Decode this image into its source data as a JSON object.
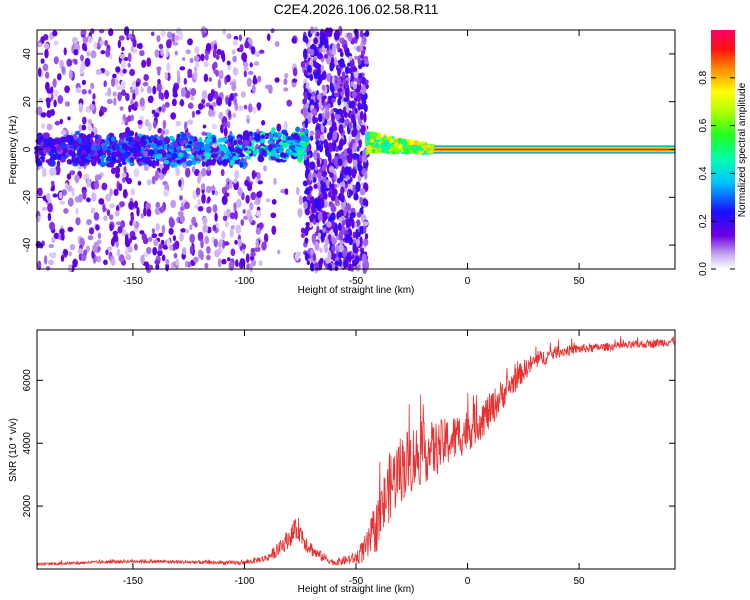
{
  "title": "C2E4.2026.106.02.58.R11",
  "colors": {
    "snr_line": "#e83030",
    "spectrogram_low": "#5a00d0",
    "spectrogram_high": "#ff0066",
    "axis": "#000000"
  },
  "chart_data": [
    {
      "type": "heatmap",
      "title": "C2E4.2026.106.02.58.R11",
      "xlabel": "Height of straight line (km)",
      "ylabel": "Frequency (Hz)",
      "xlim": [
        -193,
        93
      ],
      "ylim": [
        -50,
        50
      ],
      "xticks": [
        -150,
        -100,
        -50,
        0,
        50
      ],
      "yticks": [
        -40,
        -20,
        0,
        20,
        40
      ],
      "colorbar": {
        "label": "Normalized spectral amplitude",
        "range": [
          0,
          1
        ],
        "ticks": [
          "0.0",
          "0.2",
          "0.4",
          "0.6",
          "0.8"
        ],
        "tick_values": [
          0.0,
          0.2,
          0.4,
          0.6,
          0.8
        ],
        "colormap": "rainbow (violet to red/magenta)"
      },
      "features": [
        {
          "name": "diffuse noise",
          "x_range": [
            -193,
            -45
          ],
          "freq_range": [
            -50,
            50
          ],
          "amplitude": 0.05
        },
        {
          "name": "central band",
          "x_range": [
            -193,
            -72
          ],
          "freq_center": 0,
          "freq_halfwidth": 6,
          "amplitude_range": [
            0.1,
            0.4
          ]
        },
        {
          "name": "noise column",
          "x_range": [
            -73,
            -45
          ],
          "freq_range": [
            -50,
            50
          ],
          "amplitude": 0.12
        },
        {
          "name": "converging band",
          "x_range": [
            -45,
            -15
          ],
          "freq_center": 3,
          "amplitude_range": [
            0.4,
            0.8
          ]
        },
        {
          "name": "stable carrier",
          "x_range": [
            -15,
            93
          ],
          "freq_center": 0,
          "amplitude": 1.0
        }
      ]
    },
    {
      "type": "line",
      "title": "",
      "xlabel": "Height of straight line (km)",
      "ylabel": "SNR (10 * v/v)",
      "xlim": [
        -193,
        93
      ],
      "ylim": [
        0,
        7600
      ],
      "xticks": [
        -150,
        -100,
        -50,
        0,
        50
      ],
      "yticks": [
        2000,
        4000,
        6000
      ],
      "series": [
        {
          "name": "SNR",
          "x": [
            -193,
            -150,
            -110,
            -100,
            -90,
            -85,
            -80,
            -76,
            -72,
            -68,
            -60,
            -50,
            -45,
            -40,
            -35,
            -30,
            -25,
            -20,
            -15,
            -10,
            -5,
            0,
            5,
            10,
            15,
            20,
            25,
            30,
            40,
            50,
            60,
            70,
            80,
            93
          ],
          "y": [
            150,
            250,
            200,
            200,
            350,
            600,
            1000,
            1300,
            800,
            500,
            200,
            350,
            700,
            1500,
            2600,
            3200,
            3500,
            3700,
            3800,
            4000,
            4200,
            4400,
            4700,
            5000,
            5500,
            5900,
            6300,
            6600,
            6900,
            7000,
            7050,
            7100,
            7150,
            7250
          ],
          "noise": [
            40,
            60,
            60,
            70,
            120,
            220,
            320,
            380,
            300,
            180,
            100,
            200,
            500,
            900,
            1100,
            1100,
            1100,
            1000,
            900,
            800,
            750,
            700,
            650,
            600,
            500,
            400,
            350,
            280,
            200,
            150,
            130,
            130,
            130,
            150
          ]
        }
      ]
    }
  ]
}
